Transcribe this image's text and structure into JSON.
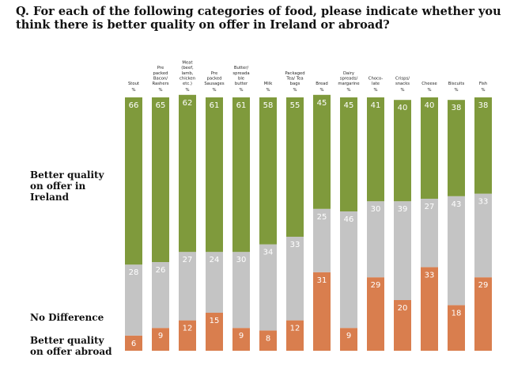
{
  "title": "Q. For each of the following categories of food, please indicate whether you think there is better quality on offer in Ireland or abroad?",
  "chart_data": {
    "type": "bar",
    "stacked": true,
    "percent_label": "%",
    "categories": [
      [
        "Stout"
      ],
      [
        "Pre",
        "packed",
        "Bacon/",
        "Rashers"
      ],
      [
        "Meat",
        "(beef,",
        "lamb,",
        "chicken",
        "etc.)"
      ],
      [
        "Pre",
        "packed",
        "Sausages"
      ],
      [
        "Butter/",
        "spreada",
        "ble",
        "butter"
      ],
      [
        "Milk"
      ],
      [
        "Packaged",
        "Tea/ Tea",
        "bags"
      ],
      [
        "Bread"
      ],
      [
        "Dairy",
        "spreads/",
        "margarine"
      ],
      [
        "Choco-",
        "late"
      ],
      [
        "Crisps/",
        "snacks"
      ],
      [
        "Cheese"
      ],
      [
        "Biscuits"
      ],
      [
        "Fish"
      ]
    ],
    "series": [
      {
        "name": "Better quality on offer abroad",
        "color": "#d97e4e",
        "values": [
          6,
          9,
          12,
          15,
          9,
          8,
          12,
          31,
          9,
          29,
          20,
          33,
          18,
          29
        ]
      },
      {
        "name": "No Difference",
        "color": "#c4c4c4",
        "values": [
          28,
          26,
          27,
          24,
          30,
          34,
          33,
          25,
          46,
          30,
          39,
          27,
          43,
          33
        ]
      },
      {
        "name": "Better quality on offer in Ireland",
        "color": "#7f9a3c",
        "values": [
          66,
          65,
          62,
          61,
          61,
          58,
          55,
          45,
          45,
          41,
          40,
          40,
          38,
          38
        ]
      }
    ],
    "ylim": [
      0,
      100
    ]
  },
  "labels": {
    "ireland": [
      "Better quality",
      "on offer in",
      "Ireland"
    ],
    "no_diff": [
      "No Difference"
    ],
    "abroad": [
      "Better quality",
      "on offer abroad"
    ]
  }
}
